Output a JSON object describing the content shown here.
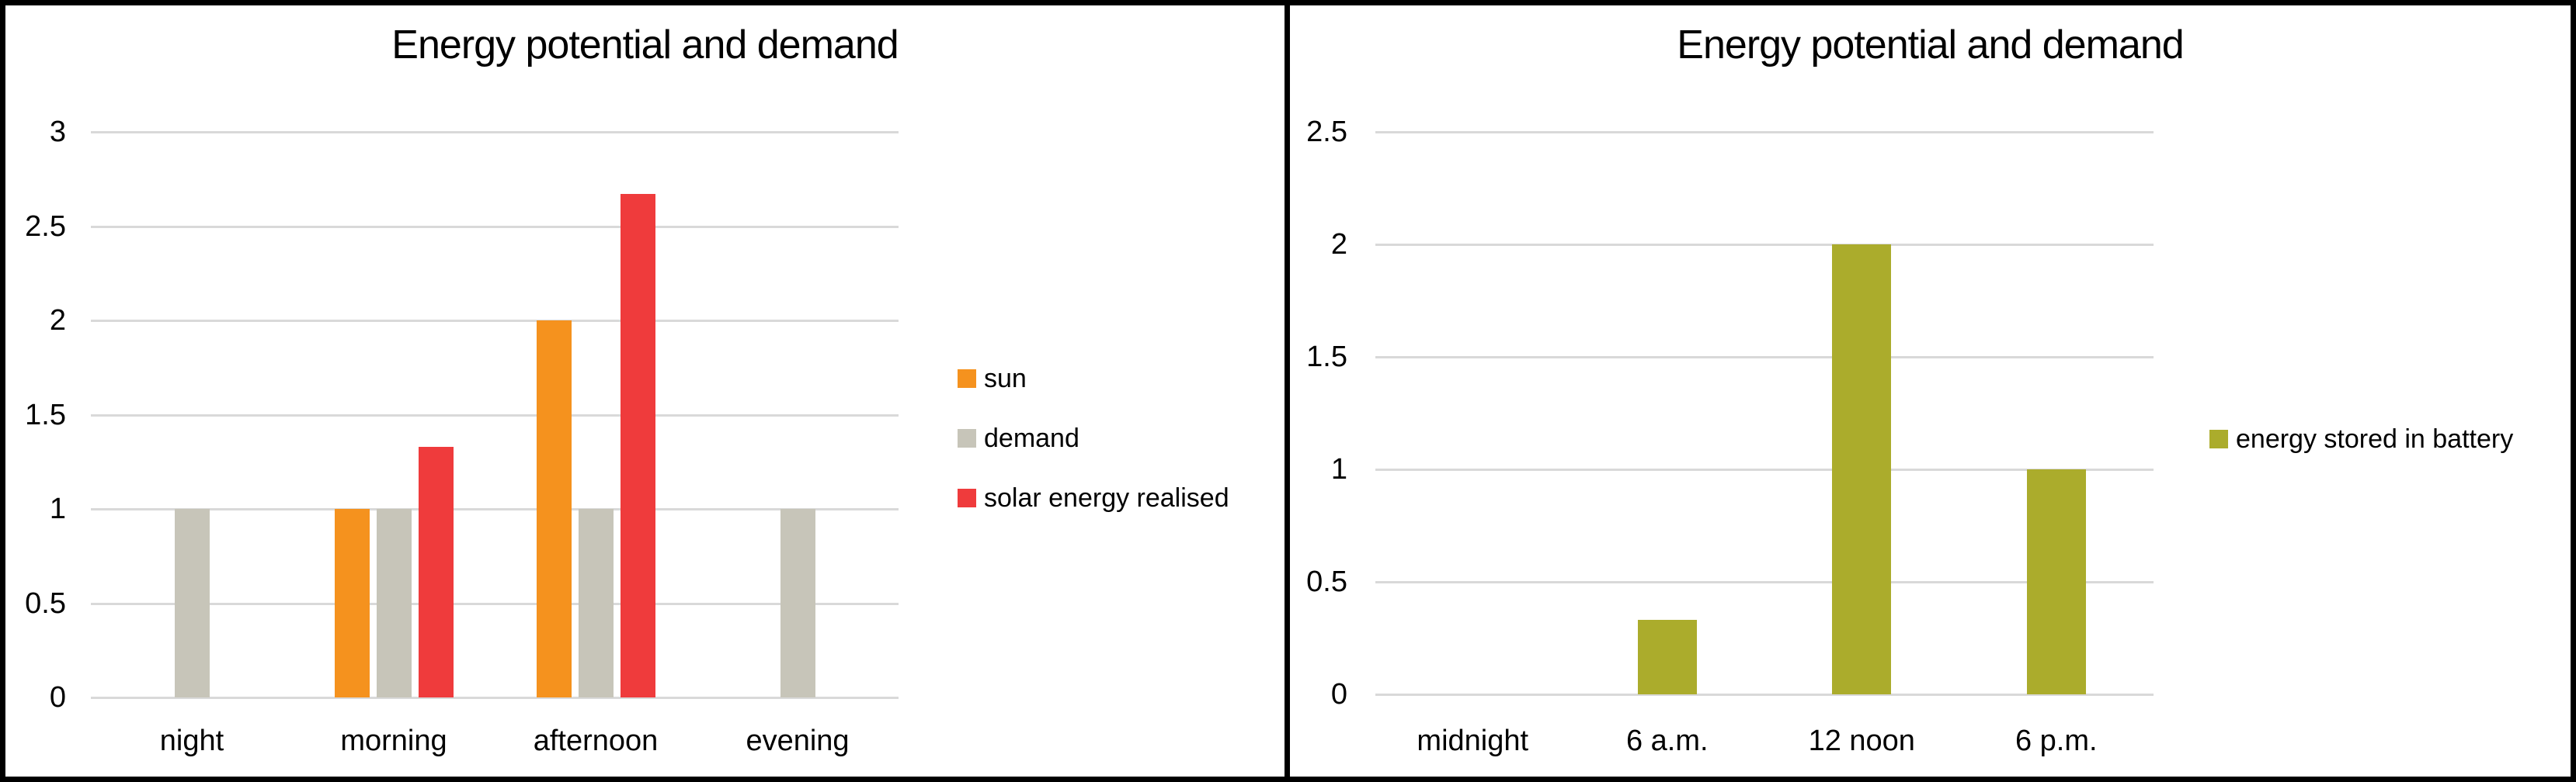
{
  "panels": [
    {
      "title_ref": "left chart panel"
    },
    {
      "title_ref": "right chart panel"
    }
  ],
  "colors": {
    "background": "#FFFFFF",
    "border": "#000000",
    "gridline": "#D9D9D9",
    "text": "#000000",
    "sun_orange": "#F5921E",
    "demand_gray": "#C7C5B9",
    "solar_red": "#EF3B3C",
    "battery_olive": "#ABAC2C"
  },
  "chart_data": [
    {
      "type": "bar",
      "title": "Energy potential and demand",
      "categories": [
        "night",
        "morning",
        "afternoon",
        "evening"
      ],
      "series": [
        {
          "name": "sun",
          "color": "#F5921E",
          "values": [
            0,
            1,
            2,
            0
          ]
        },
        {
          "name": "demand",
          "color": "#C7C5B9",
          "values": [
            1,
            1,
            1,
            1
          ]
        },
        {
          "name": "solar energy realised",
          "color": "#EF3B3C",
          "values": [
            0,
            1.33,
            2.67,
            0
          ]
        }
      ],
      "xlabel": "",
      "ylabel": "",
      "ylim": [
        0,
        3
      ],
      "yticks": [
        0,
        0.5,
        1,
        1.5,
        2,
        2.5,
        3
      ],
      "grid": true,
      "legend_position": "right"
    },
    {
      "type": "bar",
      "title": "Energy potential and demand",
      "categories": [
        "midnight",
        "6 a.m.",
        "12 noon",
        "6 p.m."
      ],
      "series": [
        {
          "name": "energy stored in battery",
          "color": "#ABAC2C",
          "values": [
            0,
            0.33,
            2,
            1
          ]
        }
      ],
      "xlabel": "",
      "ylabel": "",
      "ylim": [
        0,
        2.5
      ],
      "yticks": [
        0,
        0.5,
        1,
        1.5,
        2,
        2.5
      ],
      "grid": true,
      "legend_position": "right"
    }
  ]
}
